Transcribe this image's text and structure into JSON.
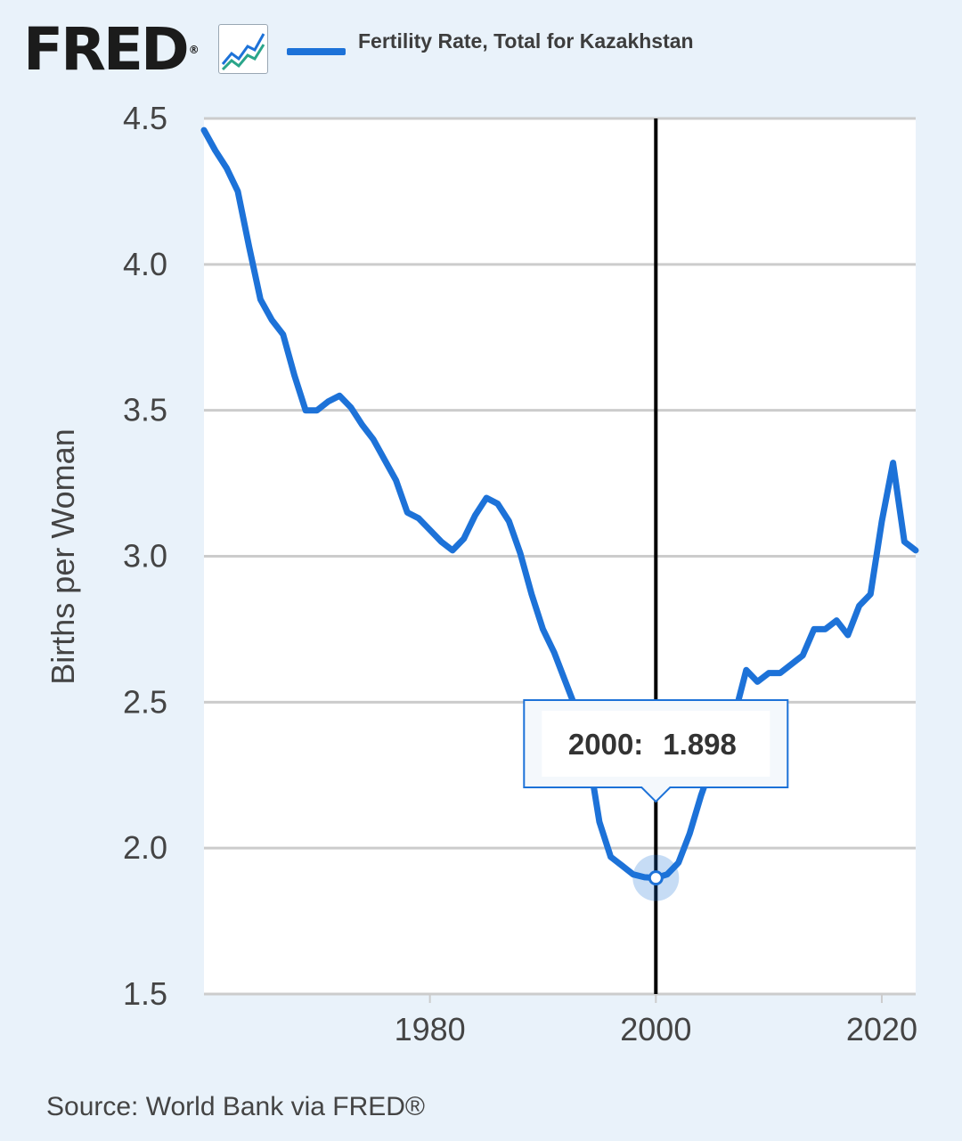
{
  "header": {
    "logo_text": "FRED",
    "logo_mark": "®",
    "graph_icon": "chart-line-icon",
    "legend_label": "Fertility Rate, Total for Kazakhstan"
  },
  "source": "Source: World Bank via FRED®",
  "colors": {
    "series": "#1d72d8",
    "background": "#e9f2fa",
    "plot_area": "#ffffff",
    "grid": "#cccccc",
    "crosshair": "#000000"
  },
  "tooltip": {
    "label": "2000:",
    "value": "1.898"
  },
  "chart_data": {
    "type": "line",
    "title": "",
    "xlabel": "",
    "ylabel": "Births per Woman",
    "xlim": [
      1960,
      2023
    ],
    "ylim": [
      1.5,
      4.5
    ],
    "yticks": [
      1.5,
      2.0,
      2.5,
      3.0,
      3.5,
      4.0,
      4.5
    ],
    "ytick_labels": [
      "1.5",
      "2.0",
      "2.5",
      "3.0",
      "3.5",
      "4.0",
      "4.5"
    ],
    "xticks": [
      1980,
      2000,
      2020
    ],
    "xtick_labels": [
      "1980",
      "2000",
      "2020"
    ],
    "grid": "horizontal",
    "legend": "top",
    "highlight": {
      "x": 2000,
      "y": 1.898
    },
    "series": [
      {
        "name": "Fertility Rate, Total for Kazakhstan",
        "x": [
          1960,
          1961,
          1962,
          1963,
          1964,
          1965,
          1966,
          1967,
          1968,
          1969,
          1970,
          1971,
          1972,
          1973,
          1974,
          1975,
          1976,
          1977,
          1978,
          1979,
          1980,
          1981,
          1982,
          1983,
          1984,
          1985,
          1986,
          1987,
          1988,
          1989,
          1990,
          1991,
          1992,
          1993,
          1994,
          1995,
          1996,
          1997,
          1998,
          1999,
          2000,
          2001,
          2002,
          2003,
          2004,
          2005,
          2006,
          2007,
          2008,
          2009,
          2010,
          2011,
          2012,
          2013,
          2014,
          2015,
          2016,
          2017,
          2018,
          2019,
          2020,
          2021,
          2022,
          2023
        ],
        "y": [
          4.46,
          4.39,
          4.33,
          4.25,
          4.06,
          3.88,
          3.81,
          3.76,
          3.62,
          3.5,
          3.5,
          3.53,
          3.55,
          3.51,
          3.45,
          3.4,
          3.33,
          3.26,
          3.15,
          3.13,
          3.09,
          3.05,
          3.02,
          3.06,
          3.14,
          3.2,
          3.18,
          3.12,
          3.01,
          2.87,
          2.75,
          2.67,
          2.57,
          2.47,
          2.33,
          2.09,
          1.97,
          1.94,
          1.91,
          1.9,
          1.898,
          1.91,
          1.95,
          2.05,
          2.18,
          2.29,
          2.37,
          2.46,
          2.61,
          2.57,
          2.6,
          2.6,
          2.63,
          2.66,
          2.75,
          2.75,
          2.78,
          2.73,
          2.83,
          2.87,
          3.12,
          3.32,
          3.05,
          3.02
        ]
      }
    ]
  }
}
